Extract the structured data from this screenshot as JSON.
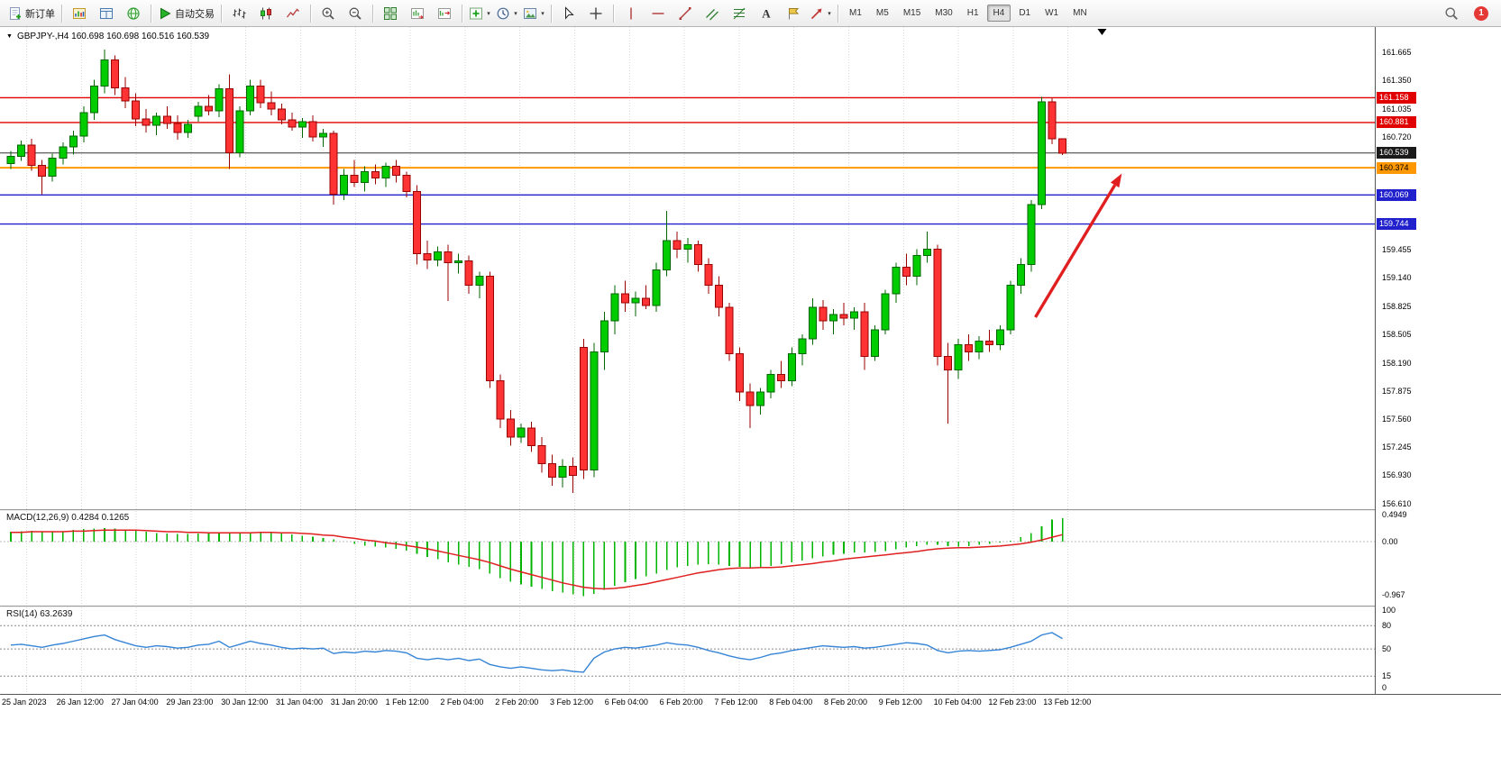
{
  "toolbar": {
    "groups": [
      {
        "items": [
          {
            "name": "new-order-button",
            "icon": "doc-plus",
            "label": "新订单"
          }
        ]
      },
      {
        "items": [
          {
            "name": "new-chart-button",
            "icon": "chart-yellow"
          },
          {
            "name": "data-window-button",
            "icon": "data-window"
          },
          {
            "name": "market-watch-button",
            "icon": "globe"
          }
        ]
      },
      {
        "items": [
          {
            "name": "autotrading-button",
            "icon": "play",
            "label": "自动交易"
          }
        ]
      },
      {
        "items": [
          {
            "name": "bar-chart-button",
            "icon": "bars"
          },
          {
            "name": "candlestick-chart-button",
            "icon": "candles"
          },
          {
            "name": "line-chart-button",
            "icon": "linechart"
          }
        ]
      },
      {
        "items": [
          {
            "name": "zoom-in-button",
            "icon": "zoomin"
          },
          {
            "name": "zoom-out-button",
            "icon": "zoomout"
          }
        ]
      },
      {
        "items": [
          {
            "name": "tile-windows-button",
            "icon": "tile"
          },
          {
            "name": "auto-scroll-button",
            "icon": "autoscroll"
          },
          {
            "name": "chart-shift-button",
            "icon": "chartshift"
          }
        ]
      },
      {
        "items": [
          {
            "name": "indicators-button",
            "icon": "indicators",
            "caret": true
          },
          {
            "name": "periods-button",
            "icon": "clock",
            "caret": true
          },
          {
            "name": "templates-button",
            "icon": "picture",
            "caret": true
          }
        ]
      },
      {
        "items": [
          {
            "name": "cursor-button",
            "icon": "cursor"
          },
          {
            "name": "crosshair-button",
            "icon": "crosshair"
          }
        ]
      },
      {
        "items": [
          {
            "name": "vertical-line-button",
            "icon": "vline"
          },
          {
            "name": "horizontal-line-button",
            "icon": "hline"
          },
          {
            "name": "trendline-button",
            "icon": "trendline"
          },
          {
            "name": "channel-button",
            "icon": "channel"
          },
          {
            "name": "fibonacci-button",
            "icon": "fibo"
          },
          {
            "name": "text-button",
            "icon": "text"
          },
          {
            "name": "label-button",
            "icon": "label"
          },
          {
            "name": "shapes-button",
            "icon": "shapes",
            "caret": true
          }
        ]
      }
    ],
    "timeframes": {
      "items": [
        "M1",
        "M5",
        "M15",
        "M30",
        "H1",
        "H4",
        "D1",
        "W1",
        "MN"
      ],
      "active": "H4"
    },
    "notification_count": "1"
  },
  "chart": {
    "collapse_arrow": "▼",
    "symbol_title": "GBPJPY-,H4 160.698 160.698 160.516 160.539",
    "hlines": [
      {
        "price": 161.158,
        "color": "#e00000",
        "width": 1.4
      },
      {
        "price": 160.881,
        "color": "#e00000",
        "width": 1.4
      },
      {
        "price": 160.539,
        "color": "#333333",
        "width": 1
      },
      {
        "price": 160.374,
        "color": "#ff9800",
        "width": 2
      },
      {
        "price": 160.069,
        "color": "#2020cc",
        "width": 1.4
      },
      {
        "price": 159.744,
        "color": "#2020cc",
        "width": 1.4
      }
    ],
    "price_axis": {
      "ticks": [
        161.665,
        161.35,
        161.035,
        160.72,
        159.455,
        159.14,
        158.825,
        158.505,
        158.19,
        157.875,
        157.56,
        157.245,
        156.93,
        156.61
      ],
      "badges": [
        {
          "price": 161.158,
          "color": "#e00000",
          "text": "#ffffff"
        },
        {
          "price": 160.881,
          "color": "#e00000",
          "text": "#ffffff"
        },
        {
          "price": 160.539,
          "color": "#1a1a1a",
          "text": "#ffffff"
        },
        {
          "price": 160.374,
          "color": "#ff9800",
          "text": "#000000"
        },
        {
          "price": 160.069,
          "color": "#2020cc",
          "text": "#ffffff"
        },
        {
          "price": 159.744,
          "color": "#2020cc",
          "text": "#ffffff"
        }
      ]
    },
    "time_axis": [
      "25 Jan 2023",
      "26 Jan 12:00",
      "27 Jan 04:00",
      "29 Jan 23:00",
      "30 Jan 12:00",
      "31 Jan 04:00",
      "31 Jan 20:00",
      "1 Feb 12:00",
      "2 Feb 04:00",
      "2 Feb 20:00",
      "3 Feb 12:00",
      "6 Feb 04:00",
      "6 Feb 20:00",
      "7 Feb 12:00",
      "8 Feb 04:00",
      "8 Feb 20:00",
      "9 Feb 12:00",
      "10 Feb 04:00",
      "12 Feb 23:00",
      "13 Feb 12:00"
    ]
  },
  "macd": {
    "label": "MACD(12,26,9) 0.4284 0.1265"
  },
  "rsi": {
    "label": "RSI(14) 63.2639"
  },
  "chart_data": {
    "type": "candlestick",
    "symbol": "GBPJPY-",
    "timeframe": "H4",
    "last_ohlc": {
      "open": 160.698,
      "high": 160.698,
      "low": 160.516,
      "close": 160.539
    },
    "price_range": [
      156.55,
      161.95
    ],
    "colors": {
      "up": "#00cc00",
      "up_border": "#006600",
      "down": "#ff3333",
      "down_border": "#990000",
      "macd_hist": "#00b400",
      "macd_signal": "#e02020",
      "rsi_line": "#3584d6",
      "arrow": "#e02020"
    },
    "candles": [
      [
        160.42,
        160.56,
        160.36,
        160.5
      ],
      [
        160.5,
        160.68,
        160.45,
        160.63
      ],
      [
        160.63,
        160.7,
        160.34,
        160.4
      ],
      [
        160.4,
        160.46,
        160.08,
        160.28
      ],
      [
        160.28,
        160.53,
        160.22,
        160.48
      ],
      [
        160.48,
        160.66,
        160.41,
        160.61
      ],
      [
        160.61,
        160.79,
        160.52,
        160.73
      ],
      [
        160.73,
        161.06,
        160.66,
        160.99
      ],
      [
        160.99,
        161.36,
        160.91,
        161.29
      ],
      [
        161.29,
        161.7,
        161.21,
        161.58
      ],
      [
        161.58,
        161.63,
        161.19,
        161.27
      ],
      [
        161.27,
        161.39,
        161.04,
        161.12
      ],
      [
        161.12,
        161.21,
        160.84,
        160.92
      ],
      [
        160.92,
        161.03,
        160.77,
        160.85
      ],
      [
        160.85,
        160.99,
        160.74,
        160.95
      ],
      [
        160.95,
        161.06,
        160.81,
        160.87
      ],
      [
        160.87,
        160.96,
        160.69,
        160.77
      ],
      [
        160.77,
        160.91,
        160.71,
        160.86
      ],
      [
        160.95,
        161.11,
        160.89,
        161.06
      ],
      [
        161.06,
        161.19,
        160.96,
        161.01
      ],
      [
        161.01,
        161.31,
        160.94,
        161.26
      ],
      [
        161.26,
        161.42,
        160.36,
        160.54
      ],
      [
        160.54,
        161.06,
        160.49,
        161.01
      ],
      [
        161.01,
        161.36,
        160.96,
        161.29
      ],
      [
        161.29,
        161.36,
        161.04,
        161.1
      ],
      [
        161.1,
        161.23,
        160.96,
        161.03
      ],
      [
        161.03,
        161.09,
        160.86,
        160.91
      ],
      [
        160.91,
        160.99,
        160.79,
        160.83
      ],
      [
        160.83,
        160.93,
        160.71,
        160.89
      ],
      [
        160.89,
        160.96,
        160.67,
        160.72
      ],
      [
        160.72,
        160.81,
        160.61,
        160.76
      ],
      [
        160.76,
        160.79,
        159.96,
        160.08
      ],
      [
        160.08,
        160.36,
        160.01,
        160.29
      ],
      [
        160.29,
        160.46,
        160.16,
        160.21
      ],
      [
        160.21,
        160.39,
        160.11,
        160.33
      ],
      [
        160.33,
        160.41,
        160.19,
        160.26
      ],
      [
        160.26,
        160.43,
        160.16,
        160.39
      ],
      [
        160.39,
        160.46,
        160.21,
        160.29
      ],
      [
        160.29,
        160.33,
        160.04,
        160.11
      ],
      [
        160.11,
        160.18,
        159.29,
        159.41
      ],
      [
        159.41,
        159.56,
        159.24,
        159.34
      ],
      [
        159.34,
        159.49,
        159.27,
        159.43
      ],
      [
        159.43,
        159.51,
        158.88,
        159.31
      ],
      [
        159.31,
        159.41,
        159.19,
        159.33
      ],
      [
        159.33,
        159.39,
        158.96,
        159.06
      ],
      [
        159.06,
        159.21,
        158.91,
        159.16
      ],
      [
        159.16,
        159.21,
        157.91,
        157.99
      ],
      [
        157.99,
        158.06,
        157.46,
        157.56
      ],
      [
        157.56,
        157.66,
        157.26,
        157.36
      ],
      [
        157.36,
        157.51,
        157.29,
        157.46
      ],
      [
        157.46,
        157.53,
        157.19,
        157.26
      ],
      [
        157.26,
        157.36,
        156.96,
        157.06
      ],
      [
        157.06,
        157.16,
        156.81,
        156.91
      ],
      [
        156.91,
        157.11,
        156.79,
        157.03
      ],
      [
        157.03,
        157.13,
        156.73,
        156.93
      ],
      [
        158.36,
        158.46,
        156.89,
        156.99
      ],
      [
        156.99,
        158.41,
        156.91,
        158.31
      ],
      [
        158.31,
        158.76,
        158.11,
        158.66
      ],
      [
        158.66,
        159.06,
        158.51,
        158.96
      ],
      [
        158.96,
        159.11,
        158.76,
        158.86
      ],
      [
        158.86,
        158.99,
        158.71,
        158.91
      ],
      [
        158.91,
        159.06,
        158.79,
        158.83
      ],
      [
        158.83,
        159.31,
        158.76,
        159.23
      ],
      [
        159.23,
        159.89,
        159.16,
        159.56
      ],
      [
        159.56,
        159.66,
        159.36,
        159.46
      ],
      [
        159.46,
        159.59,
        159.31,
        159.51
      ],
      [
        159.51,
        159.56,
        159.21,
        159.29
      ],
      [
        159.29,
        159.36,
        158.96,
        159.06
      ],
      [
        159.06,
        159.16,
        158.71,
        158.81
      ],
      [
        158.81,
        158.86,
        158.21,
        158.29
      ],
      [
        158.29,
        158.36,
        157.76,
        157.86
      ],
      [
        157.86,
        157.96,
        157.46,
        157.71
      ],
      [
        157.71,
        157.91,
        157.61,
        157.86
      ],
      [
        157.86,
        158.11,
        157.79,
        158.06
      ],
      [
        158.06,
        158.21,
        157.91,
        157.99
      ],
      [
        157.99,
        158.36,
        157.93,
        158.29
      ],
      [
        158.29,
        158.51,
        158.16,
        158.46
      ],
      [
        158.46,
        158.91,
        158.39,
        158.81
      ],
      [
        158.81,
        158.89,
        158.56,
        158.66
      ],
      [
        158.66,
        158.79,
        158.51,
        158.73
      ],
      [
        158.73,
        158.86,
        158.61,
        158.69
      ],
      [
        158.69,
        158.81,
        158.56,
        158.76
      ],
      [
        158.76,
        158.86,
        158.11,
        158.26
      ],
      [
        158.26,
        158.61,
        158.21,
        158.56
      ],
      [
        158.56,
        159.01,
        158.51,
        158.96
      ],
      [
        158.96,
        159.31,
        158.86,
        159.26
      ],
      [
        159.26,
        159.41,
        159.06,
        159.16
      ],
      [
        159.16,
        159.46,
        159.06,
        159.39
      ],
      [
        159.39,
        159.66,
        159.31,
        159.46
      ],
      [
        159.46,
        159.51,
        158.16,
        158.26
      ],
      [
        158.26,
        158.41,
        157.51,
        158.11
      ],
      [
        158.11,
        158.46,
        158.01,
        158.39
      ],
      [
        158.39,
        158.51,
        158.21,
        158.31
      ],
      [
        158.31,
        158.49,
        158.23,
        158.43
      ],
      [
        158.43,
        158.56,
        158.31,
        158.39
      ],
      [
        158.39,
        158.61,
        158.33,
        158.56
      ],
      [
        158.56,
        159.11,
        158.51,
        159.06
      ],
      [
        159.06,
        159.36,
        158.96,
        159.29
      ],
      [
        159.29,
        160.01,
        159.21,
        159.96
      ],
      [
        159.96,
        161.17,
        159.91,
        161.11
      ],
      [
        161.11,
        161.16,
        160.64,
        160.7
      ],
      [
        160.698,
        160.698,
        160.516,
        160.539
      ]
    ],
    "arrow": {
      "from_bar": 98.4,
      "from_price": 158.7,
      "to_bar": 106.7,
      "to_price": 160.31,
      "color": "#e02020"
    },
    "shift_marker_bar": 104.8,
    "macd": {
      "range": [
        0.558,
        -1.164
      ],
      "axis_ticks": [
        {
          "value": 0.4949,
          "label": "0.4949"
        },
        {
          "value": 0,
          "label": "0.00"
        },
        {
          "value": -0.967,
          "label": "-0.967"
        }
      ],
      "histogram": [
        0.18,
        0.19,
        0.2,
        0.19,
        0.18,
        0.19,
        0.21,
        0.23,
        0.24,
        0.25,
        0.24,
        0.22,
        0.2,
        0.18,
        0.16,
        0.15,
        0.14,
        0.14,
        0.15,
        0.16,
        0.17,
        0.17,
        0.16,
        0.17,
        0.18,
        0.17,
        0.15,
        0.13,
        0.11,
        0.09,
        0.07,
        0.04,
        0.0,
        -0.04,
        -0.07,
        -0.09,
        -0.11,
        -0.13,
        -0.16,
        -0.22,
        -0.28,
        -0.32,
        -0.38,
        -0.42,
        -0.46,
        -0.5,
        -0.58,
        -0.66,
        -0.73,
        -0.78,
        -0.82,
        -0.86,
        -0.9,
        -0.93,
        -0.96,
        -0.99,
        -0.95,
        -0.88,
        -0.8,
        -0.74,
        -0.68,
        -0.63,
        -0.58,
        -0.52,
        -0.47,
        -0.44,
        -0.42,
        -0.41,
        -0.42,
        -0.44,
        -0.46,
        -0.47,
        -0.46,
        -0.44,
        -0.41,
        -0.38,
        -0.34,
        -0.3,
        -0.27,
        -0.24,
        -0.22,
        -0.2,
        -0.2,
        -0.19,
        -0.17,
        -0.14,
        -0.11,
        -0.08,
        -0.06,
        -0.06,
        -0.08,
        -0.09,
        -0.08,
        -0.06,
        -0.04,
        -0.02,
        0.02,
        0.08,
        0.16,
        0.28,
        0.4,
        0.4284
      ],
      "signal": [
        0.17,
        0.17,
        0.18,
        0.18,
        0.18,
        0.18,
        0.19,
        0.19,
        0.2,
        0.21,
        0.21,
        0.21,
        0.21,
        0.2,
        0.19,
        0.18,
        0.18,
        0.17,
        0.17,
        0.16,
        0.16,
        0.16,
        0.16,
        0.16,
        0.17,
        0.17,
        0.16,
        0.16,
        0.15,
        0.14,
        0.12,
        0.11,
        0.08,
        0.06,
        0.03,
        0.01,
        -0.02,
        -0.04,
        -0.07,
        -0.1,
        -0.13,
        -0.17,
        -0.21,
        -0.25,
        -0.29,
        -0.33,
        -0.38,
        -0.44,
        -0.5,
        -0.55,
        -0.6,
        -0.65,
        -0.7,
        -0.75,
        -0.79,
        -0.83,
        -0.85,
        -0.86,
        -0.85,
        -0.83,
        -0.8,
        -0.77,
        -0.73,
        -0.69,
        -0.65,
        -0.61,
        -0.57,
        -0.54,
        -0.51,
        -0.49,
        -0.48,
        -0.48,
        -0.47,
        -0.47,
        -0.46,
        -0.44,
        -0.42,
        -0.4,
        -0.37,
        -0.35,
        -0.32,
        -0.3,
        -0.28,
        -0.26,
        -0.24,
        -0.22,
        -0.2,
        -0.18,
        -0.15,
        -0.13,
        -0.12,
        -0.11,
        -0.11,
        -0.1,
        -0.09,
        -0.08,
        -0.06,
        -0.04,
        -0.01,
        0.03,
        0.08,
        0.1265
      ]
    },
    "rsi": {
      "range": [
        103.5,
        -8
      ],
      "levels": [
        80,
        50,
        15
      ],
      "axis_ticks": [
        100,
        80,
        50,
        15,
        0
      ],
      "values": [
        55,
        56,
        54,
        52,
        55,
        57,
        60,
        63,
        66,
        68,
        62,
        58,
        54,
        52,
        54,
        53,
        51,
        52,
        55,
        56,
        60,
        52,
        56,
        60,
        57,
        55,
        52,
        50,
        51,
        50,
        51,
        44,
        46,
        45,
        47,
        46,
        48,
        47,
        45,
        38,
        36,
        38,
        36,
        38,
        35,
        37,
        30,
        27,
        25,
        27,
        25,
        23,
        22,
        23,
        21,
        20,
        38,
        46,
        50,
        52,
        51,
        53,
        55,
        58,
        56,
        55,
        52,
        48,
        45,
        41,
        38,
        36,
        39,
        43,
        45,
        48,
        50,
        52,
        54,
        53,
        52,
        53,
        51,
        52,
        54,
        56,
        58,
        57,
        55,
        48,
        45,
        47,
        48,
        47,
        48,
        49,
        52,
        56,
        60,
        68,
        71,
        63.26
      ]
    }
  }
}
